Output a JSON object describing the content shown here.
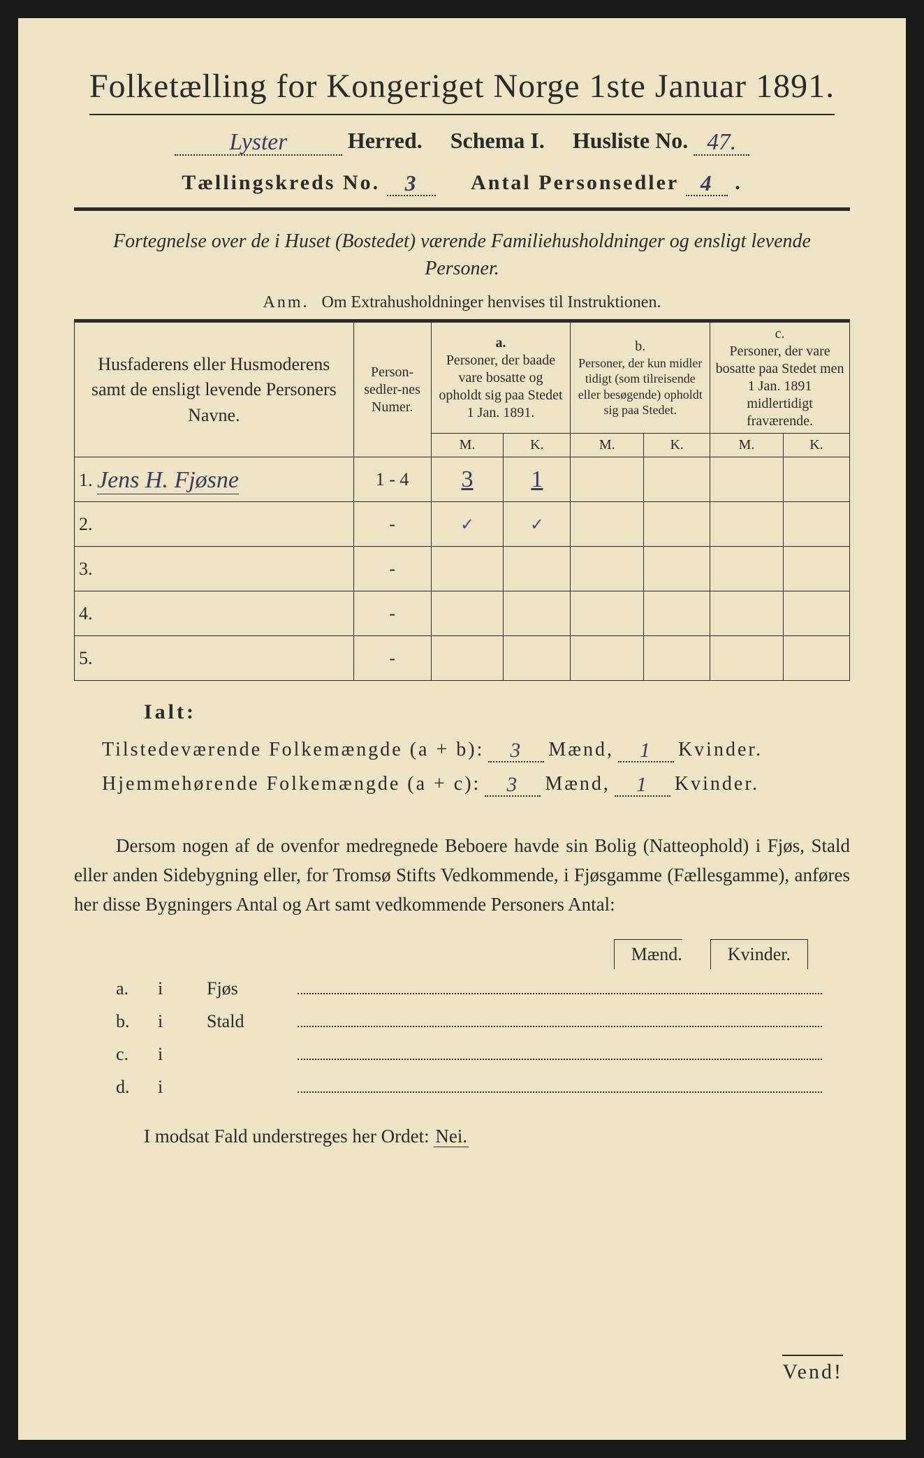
{
  "colors": {
    "paper": "#ede4c6",
    "ink": "#2a2a2a",
    "handwriting": "#3a3a5a",
    "border": "#1a1a1a"
  },
  "title": "Folketælling for Kongeriget Norge 1ste Januar 1891.",
  "line2": {
    "herred_value": "Lyster",
    "herred_label": "Herred.",
    "schema_label": "Schema I.",
    "husliste_label": "Husliste No.",
    "husliste_value": "47."
  },
  "line3": {
    "kreds_label": "Tællingskreds No.",
    "kreds_value": "3",
    "antal_label": "Antal Personsedler",
    "antal_value": "4"
  },
  "subtitle": "Fortegnelse over de i Huset (Bostedet) værende Familiehusholdninger og ensligt levende Personer.",
  "anm_label": "Anm.",
  "anm_text": "Om Extrahusholdninger henvises til Instruktionen.",
  "table": {
    "col_name": "Husfaderens eller Husmoderens samt de ensligt levende Personers Navne.",
    "col_num": "Person-sedler-nes Numer.",
    "col_a_label": "a.",
    "col_a": "Personer, der baade vare bosatte og opholdt sig paa Stedet 1 Jan. 1891.",
    "col_b_label": "b.",
    "col_b": "Personer, der kun midler tidigt (som tilreisende eller besøgende) opholdt sig paa Stedet.",
    "col_c_label": "c.",
    "col_c": "Personer, der vare bosatte paa Stedet men 1 Jan. 1891 midlertidigt fraværende.",
    "m_label": "M.",
    "k_label": "K.",
    "rows": [
      {
        "num": "1.",
        "name": "Jens H. Fjøsne",
        "sedler": "1 - 4",
        "a_m": "3",
        "a_k": "1",
        "b_m": "",
        "b_k": "",
        "c_m": "",
        "c_k": ""
      },
      {
        "num": "2.",
        "name": "",
        "sedler": "-",
        "a_m": "✓",
        "a_k": "✓",
        "b_m": "",
        "b_k": "",
        "c_m": "",
        "c_k": ""
      },
      {
        "num": "3.",
        "name": "",
        "sedler": "-",
        "a_m": "",
        "a_k": "",
        "b_m": "",
        "b_k": "",
        "c_m": "",
        "c_k": ""
      },
      {
        "num": "4.",
        "name": "",
        "sedler": "-",
        "a_m": "",
        "a_k": "",
        "b_m": "",
        "b_k": "",
        "c_m": "",
        "c_k": ""
      },
      {
        "num": "5.",
        "name": "",
        "sedler": "-",
        "a_m": "",
        "a_k": "",
        "b_m": "",
        "b_k": "",
        "c_m": "",
        "c_k": ""
      }
    ]
  },
  "ialt": "Ialt:",
  "totals": {
    "tilstede_label": "Tilstedeværende Folkemængde (a + b):",
    "hjemme_label": "Hjemmehørende Folkemængde (a + c):",
    "maend_label": "Mænd,",
    "kvinder_label": "Kvinder.",
    "tilstede_m": "3",
    "tilstede_k": "1",
    "hjemme_m": "3",
    "hjemme_k": "1"
  },
  "para": "Dersom nogen af de ovenfor medregnede Beboere havde sin Bolig (Natteophold) i Fjøs, Stald eller anden Sidebygning eller, for Tromsø Stifts Vedkommende, i Fjøsgamme (Fællesgamme), anføres her disse Bygningers Antal og Art samt vedkommende Personers Antal:",
  "mk_header": {
    "m": "Mænd.",
    "k": "Kvinder."
  },
  "buildings": [
    {
      "label": "a.",
      "i": "i",
      "name": "Fjøs"
    },
    {
      "label": "b.",
      "i": "i",
      "name": "Stald"
    },
    {
      "label": "c.",
      "i": "i",
      "name": ""
    },
    {
      "label": "d.",
      "i": "i",
      "name": ""
    }
  ],
  "nei_text": "I modsat Fald understreges her Ordet:",
  "nei_word": "Nei.",
  "vend": "Vend!"
}
